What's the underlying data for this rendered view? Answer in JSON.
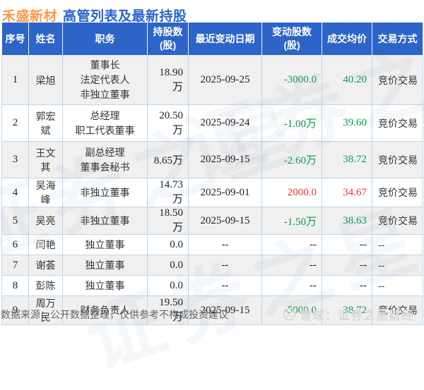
{
  "title": {
    "stock_name": "禾盛新材",
    "subtitle": "高管列表及最新持股"
  },
  "chart_data": {
    "type": "table",
    "title": "禾盛新材 高管列表及最新持股",
    "columns": [
      "序号",
      "姓名",
      "职务",
      "持股数\n(股)",
      "最近变动日期",
      "变动股数\n(股)",
      "成交均价",
      "交易方式"
    ],
    "rows": [
      {
        "no": "1",
        "name": "梁旭",
        "positions": [
          "董事长",
          "法定代表人",
          "非独立董事"
        ],
        "shares": "18.90万",
        "change_date": "2025-09-25",
        "change_shares": "-3000.0",
        "avg_price": "40.20",
        "method": "竞价交易",
        "trend": "down"
      },
      {
        "no": "2",
        "name": "郭宏斌",
        "positions": [
          "总经理",
          "职工代表董事"
        ],
        "shares": "20.50万",
        "change_date": "2025-09-24",
        "change_shares": "-1.00万",
        "avg_price": "39.60",
        "method": "竞价交易",
        "trend": "down"
      },
      {
        "no": "3",
        "name": "王文其",
        "positions": [
          "副总经理",
          "董事会秘书"
        ],
        "shares": "8.65万",
        "change_date": "2025-09-15",
        "change_shares": "-2.60万",
        "avg_price": "38.72",
        "method": "竞价交易",
        "trend": "down"
      },
      {
        "no": "4",
        "name": "吴海峰",
        "positions": [
          "非独立董事"
        ],
        "shares": "14.73万",
        "change_date": "2025-09-01",
        "change_shares": "2000.0",
        "avg_price": "34.67",
        "method": "竞价交易",
        "trend": "up"
      },
      {
        "no": "5",
        "name": "吴亮",
        "positions": [
          "非独立董事"
        ],
        "shares": "18.50万",
        "change_date": "2025-09-15",
        "change_shares": "-1.50万",
        "avg_price": "38.63",
        "method": "竞价交易",
        "trend": "down"
      },
      {
        "no": "6",
        "name": "闫艳",
        "positions": [
          "独立董事"
        ],
        "shares": "0.0",
        "change_date": "--",
        "change_shares": "--",
        "avg_price": "--",
        "method": "--",
        "trend": "flat"
      },
      {
        "no": "7",
        "name": "谢荟",
        "positions": [
          "独立董事"
        ],
        "shares": "0.0",
        "change_date": "--",
        "change_shares": "--",
        "avg_price": "--",
        "method": "--",
        "trend": "flat"
      },
      {
        "no": "8",
        "name": "彭陈",
        "positions": [
          "独立董事"
        ],
        "shares": "0.0",
        "change_date": "--",
        "change_shares": "--",
        "avg_price": "--",
        "method": "--",
        "trend": "flat"
      },
      {
        "no": "9",
        "name": "周万民",
        "positions": [
          "财务负责人"
        ],
        "shares": "19.50万",
        "change_date": "2025-09-15",
        "change_shares": "-5000.0",
        "avg_price": "38.72",
        "method": "竞价交易",
        "trend": "down"
      }
    ]
  },
  "footer": {
    "disclaimer": "数据来源：公开数据整理，仅供参考不构成投资建议",
    "brand": "雪球：证券之星财经"
  },
  "watermark": {
    "text": "证券之星"
  },
  "colors": {
    "header_bg": "#2d64c8",
    "stripe": "#f0f0f0",
    "up_red": "#e23333",
    "down_green": "#0a9d4e",
    "title_orange": "#fa9a4b",
    "title_blue": "#2a64cd",
    "border": "#bcd7ee",
    "brand_gray": "#d9d9d9"
  }
}
